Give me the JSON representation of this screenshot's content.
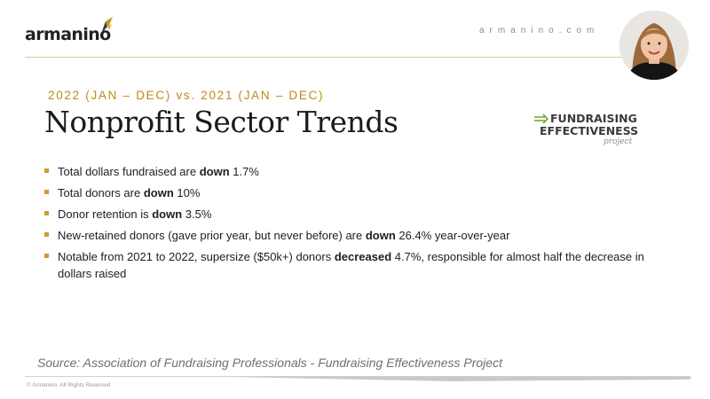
{
  "header": {
    "logo_text": "armanino",
    "site_url": "armanino.com",
    "avatar_alt": "presenter-photo"
  },
  "slide": {
    "subtitle": "2022 (JAN – DEC) vs. 2021 (JAN – DEC)",
    "title": "Nonprofit Sector Trends",
    "badge": {
      "line1": "FUNDRAISING",
      "line2": "EFFECTIVENESS",
      "line3": "project"
    },
    "bullets": [
      {
        "pre": "Total dollars fundraised are ",
        "bold": "down",
        "post": " 1.7%"
      },
      {
        "pre": "Total donors are ",
        "bold": "down",
        "post": " 10%"
      },
      {
        "pre": "Donor retention is ",
        "bold": "down",
        "post": " 3.5%"
      },
      {
        "pre": "New-retained donors (gave prior year, but never before) are ",
        "bold": "down",
        "post": " 26.4% year-over-year"
      },
      {
        "pre": "Notable from 2021 to 2022, supersize ($50k+) donors ",
        "bold": "decreased",
        "post": " 4.7%, responsible for almost half the decrease in dollars raised"
      }
    ],
    "source": "Source: Association of Fundraising Professionals - Fundraising Effectiveness Project"
  },
  "footer": {
    "copyright": "© Armanino. All Rights Reserved"
  },
  "colors": {
    "accent_gold": "#c08a17",
    "bullet_gold": "#d09a2b",
    "rule_gold": "#d9c79e",
    "fep_green": "#7aa83a"
  },
  "icons": [
    "armanino-logo-mark-icon",
    "fep-arrow-icon"
  ]
}
